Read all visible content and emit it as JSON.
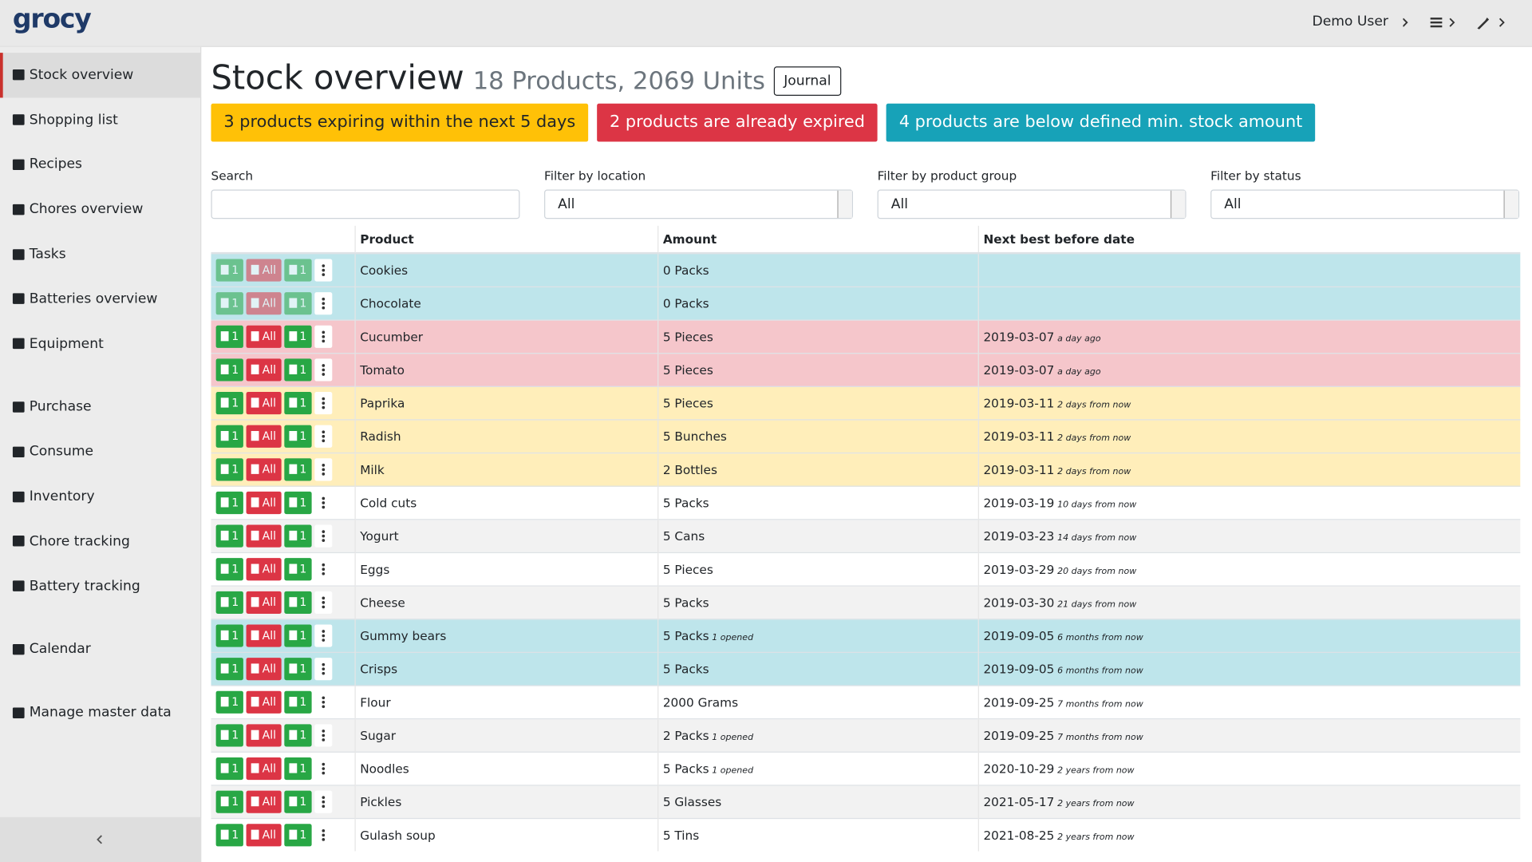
{
  "brand": "grocy",
  "user": "Demo User",
  "sidebar": [
    [
      "Stock overview",
      "Shopping list",
      "Recipes",
      "Chores overview",
      "Tasks",
      "Batteries overview",
      "Equipment"
    ],
    [
      "Purchase",
      "Consume",
      "Inventory",
      "Chore tracking",
      "Battery tracking"
    ],
    [
      "Calendar"
    ],
    [
      "Manage master data"
    ]
  ],
  "header": {
    "title": "Stock overview",
    "subtitle": "18 Products, 2069 Units",
    "journal": "Journal"
  },
  "alerts": [
    {
      "text": "3 products expiring within the next 5 days",
      "color": "#ffc107",
      "text_color": "#212529"
    },
    {
      "text": "2 products are already expired",
      "color": "#dc3545",
      "text_color": "#ffffff"
    },
    {
      "text": "4 products are below defined min. stock amount",
      "color": "#17a2b8",
      "text_color": "#ffffff"
    }
  ],
  "filters": [
    {
      "label": "Search"
    },
    {
      "label": "Filter by location",
      "value": "All"
    },
    {
      "label": "Filter by product group",
      "value": "All"
    },
    {
      "label": "Filter by status",
      "value": "All"
    }
  ],
  "buttons": {
    "consume_one": "1",
    "consume_all": "All",
    "open_one": "1"
  },
  "table": {
    "columns": [
      "Product",
      "Amount",
      "Next best before date"
    ],
    "rows": [
      {
        "product": "Cookies",
        "amount": "0 Packs",
        "color": "#bee5eb",
        "disabled": true
      },
      {
        "product": "Chocolate",
        "amount": "0 Packs",
        "color": "#bee5eb",
        "disabled": true
      },
      {
        "product": "Cucumber",
        "amount": "5 Pieces",
        "date": "2019-03-07",
        "relative": "a day ago",
        "color": "#f5c6cb"
      },
      {
        "product": "Tomato",
        "amount": "5 Pieces",
        "date": "2019-03-07",
        "relative": "a day ago",
        "color": "#f5c6cb"
      },
      {
        "product": "Paprika",
        "amount": "5 Pieces",
        "date": "2019-03-11",
        "relative": "2 days from now",
        "color": "#ffeeba"
      },
      {
        "product": "Radish",
        "amount": "5 Bunches",
        "date": "2019-03-11",
        "relative": "2 days from now",
        "color": "#ffeeba"
      },
      {
        "product": "Milk",
        "amount": "2 Bottles",
        "date": "2019-03-11",
        "relative": "2 days from now",
        "color": "#ffeeba"
      },
      {
        "product": "Cold cuts",
        "amount": "5 Packs",
        "date": "2019-03-19",
        "relative": "10 days from now"
      },
      {
        "product": "Yogurt",
        "amount": "5 Cans",
        "date": "2019-03-23",
        "relative": "14 days from now"
      },
      {
        "product": "Eggs",
        "amount": "5 Pieces",
        "date": "2019-03-29",
        "relative": "20 days from now"
      },
      {
        "product": "Cheese",
        "amount": "5 Packs",
        "date": "2019-03-30",
        "relative": "21 days from now"
      },
      {
        "product": "Gummy bears",
        "amount": "5 Packs",
        "opened": "1 opened",
        "date": "2019-09-05",
        "relative": "6 months from now",
        "color": "#bee5eb"
      },
      {
        "product": "Crisps",
        "amount": "5 Packs",
        "date": "2019-09-05",
        "relative": "6 months from now",
        "color": "#bee5eb"
      },
      {
        "product": "Flour",
        "amount": "2000 Grams",
        "date": "2019-09-25",
        "relative": "7 months from now"
      },
      {
        "product": "Sugar",
        "amount": "2 Packs",
        "opened": "1 opened",
        "date": "2019-09-25",
        "relative": "7 months from now"
      },
      {
        "product": "Noodles",
        "amount": "5 Packs",
        "opened": "1 opened",
        "date": "2020-10-29",
        "relative": "2 years from now"
      },
      {
        "product": "Pickles",
        "amount": "5 Glasses",
        "date": "2021-05-17",
        "relative": "2 years from now"
      },
      {
        "product": "Gulash soup",
        "amount": "5 Tins",
        "date": "2021-08-25",
        "relative": "2 years from now"
      }
    ]
  }
}
